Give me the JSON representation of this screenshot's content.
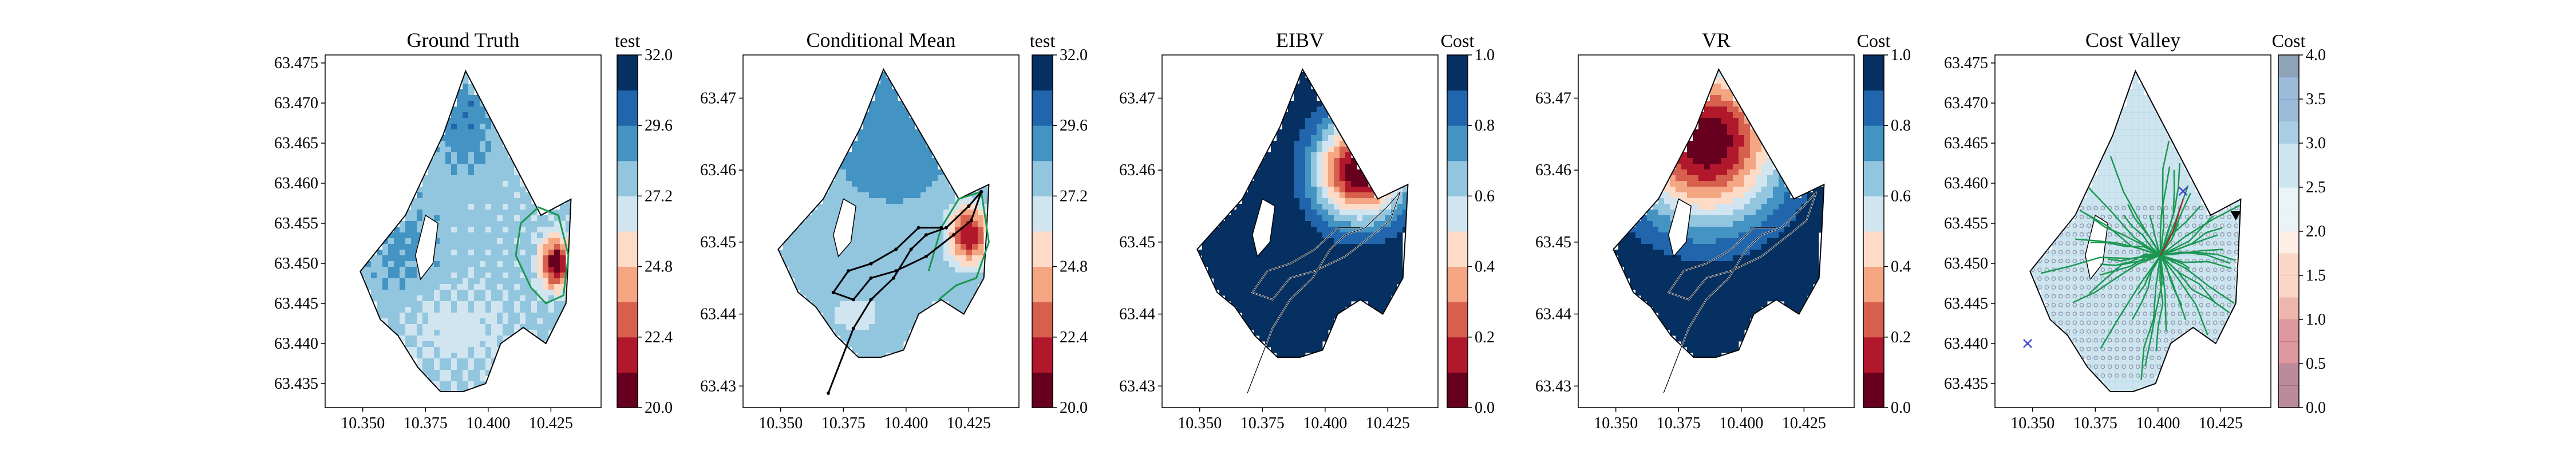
{
  "figure": {
    "colors": {
      "red": "#b2182b",
      "blue": "#2166ac",
      "green": "#1a9850",
      "path": "#000000",
      "marker_x": "#3f3fd0"
    }
  },
  "chart_data": [
    {
      "type": "heatmap",
      "title": "Ground Truth",
      "colorbar_label": "test",
      "xlim": [
        10.335,
        10.445
      ],
      "ylim": [
        63.432,
        63.476
      ],
      "xticks": [
        "10.350",
        "10.375",
        "10.400",
        "10.425"
      ],
      "yticks": [
        "63.435",
        "63.440",
        "63.445",
        "63.450",
        "63.455",
        "63.460",
        "63.465",
        "63.470",
        "63.475"
      ],
      "cbar_range": [
        20.0,
        32.0
      ],
      "cbar_ticks": [
        "20.0",
        "22.4",
        "24.8",
        "27.2",
        "29.6",
        "32.0"
      ],
      "colormap": "RdBu",
      "contour": {
        "level": 26.0,
        "color": "#1a9850"
      },
      "features": {
        "hotspot": [
          10.427,
          63.45
        ],
        "min_value": 20.0,
        "max_value": 32.0
      }
    },
    {
      "type": "heatmap",
      "title": "Conditional Mean",
      "colorbar_label": "test",
      "xlim": [
        10.335,
        10.445
      ],
      "ylim": [
        63.427,
        63.476
      ],
      "xticks": [
        "10.350",
        "10.375",
        "10.400",
        "10.425"
      ],
      "yticks": [
        "63.43",
        "63.44",
        "63.45",
        "63.46",
        "63.47"
      ],
      "cbar_range": [
        20.0,
        32.0
      ],
      "cbar_ticks": [
        "20.0",
        "22.4",
        "24.8",
        "27.2",
        "29.6",
        "32.0"
      ],
      "colormap": "RdBu",
      "contour": {
        "level": 26.0,
        "color": "#1a9850"
      },
      "path_color": "#000000",
      "path": [
        [
          10.369,
          63.429
        ],
        [
          10.379,
          63.438
        ],
        [
          10.386,
          63.442
        ],
        [
          10.395,
          63.445
        ],
        [
          10.402,
          63.449
        ],
        [
          10.408,
          63.451
        ],
        [
          10.416,
          63.452
        ],
        [
          10.425,
          63.455
        ],
        [
          10.43,
          63.457
        ],
        [
          10.426,
          63.453
        ],
        [
          10.419,
          63.451
        ],
        [
          10.408,
          63.448
        ],
        [
          10.396,
          63.446
        ],
        [
          10.386,
          63.445
        ],
        [
          10.379,
          63.442
        ],
        [
          10.371,
          63.443
        ],
        [
          10.377,
          63.446
        ],
        [
          10.386,
          63.447
        ],
        [
          10.396,
          63.449
        ],
        [
          10.405,
          63.452
        ],
        [
          10.414,
          63.452
        ]
      ]
    },
    {
      "type": "heatmap",
      "title": "EIBV",
      "colorbar_label": "Cost",
      "xlim": [
        10.335,
        10.445
      ],
      "ylim": [
        63.427,
        63.476
      ],
      "xticks": [
        "10.350",
        "10.375",
        "10.400",
        "10.425"
      ],
      "yticks": [
        "63.43",
        "63.44",
        "63.45",
        "63.46",
        "63.47"
      ],
      "cbar_range": [
        0.0,
        1.0
      ],
      "cbar_ticks": [
        "0.0",
        "0.2",
        "0.4",
        "0.6",
        "0.8",
        "1.0"
      ],
      "colormap": "RdBu",
      "path_color": "#000000",
      "features": {
        "peak": [
          10.414,
          63.46
        ],
        "peak_value": 0.0,
        "background_value": 1.0
      }
    },
    {
      "type": "heatmap",
      "title": "VR",
      "colorbar_label": "Cost",
      "xlim": [
        10.335,
        10.445
      ],
      "ylim": [
        63.427,
        63.476
      ],
      "xticks": [
        "10.350",
        "10.375",
        "10.400",
        "10.425"
      ],
      "yticks": [
        "63.43",
        "63.44",
        "63.45",
        "63.46",
        "63.47"
      ],
      "cbar_range": [
        0.0,
        1.0
      ],
      "cbar_ticks": [
        "0.0",
        "0.2",
        "0.4",
        "0.6",
        "0.8",
        "1.0"
      ],
      "colormap": "RdBu",
      "path_color": "#000000",
      "features": {
        "peak": [
          10.385,
          63.464
        ],
        "peak_value": 0.0,
        "background_value": 1.0
      }
    },
    {
      "type": "heatmap",
      "title": "Cost Valley",
      "colorbar_label": "Cost",
      "xlim": [
        10.335,
        10.445
      ],
      "ylim": [
        63.432,
        63.476
      ],
      "xticks": [
        "10.350",
        "10.375",
        "10.400",
        "10.425"
      ],
      "yticks": [
        "63.435",
        "63.440",
        "63.445",
        "63.450",
        "63.455",
        "63.460",
        "63.465",
        "63.470",
        "63.475"
      ],
      "cbar_range": [
        0.0,
        4.0
      ],
      "cbar_ticks": [
        "0.0",
        "0.5",
        "1.0",
        "1.5",
        "2.0",
        "2.5",
        "3.0",
        "3.5",
        "4.0"
      ],
      "colormap": "RdBu (alpha 0.4)",
      "grid_points": "grey circles",
      "rrt_tree_color": "#1a9850",
      "tree_root": [
        10.401,
        63.451
      ],
      "markers": [
        {
          "kind": "triangle",
          "lon": 10.431,
          "lat": 63.456,
          "color": "#000000"
        },
        {
          "kind": "x",
          "lon": 10.41,
          "lat": 63.459,
          "color": "#3f3fd0"
        },
        {
          "kind": "x",
          "lon": 10.348,
          "lat": 63.44,
          "color": "#3f3fd0"
        }
      ],
      "selected_path_color": "#b2182b",
      "selected_path": [
        [
          10.401,
          63.451
        ],
        [
          10.406,
          63.454
        ],
        [
          10.41,
          63.458
        ]
      ]
    }
  ]
}
